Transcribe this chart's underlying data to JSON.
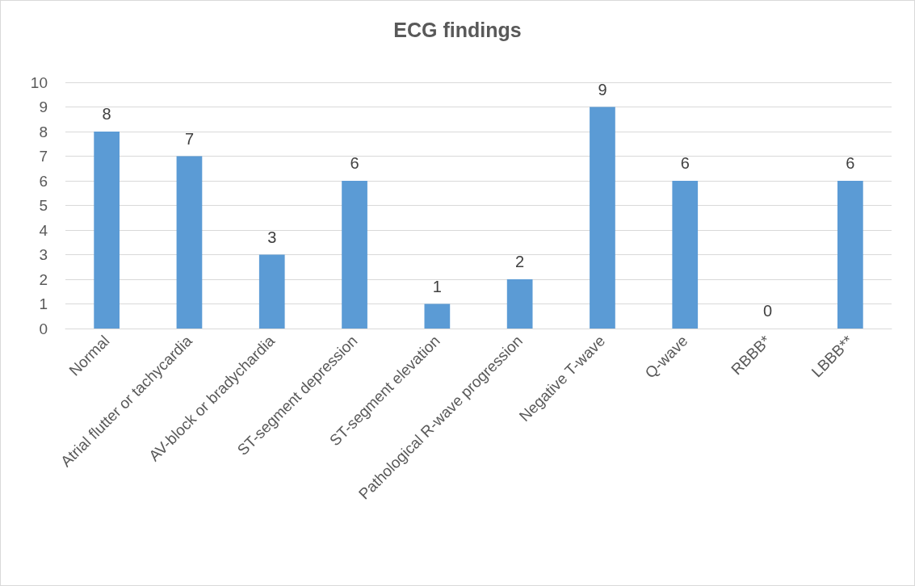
{
  "chart_data": {
    "type": "bar",
    "title": "ECG findings",
    "categories": [
      "Normal",
      "Atrial flutter or tachycardia",
      "AV-block or bradychardia",
      "ST-segment depression",
      "ST-segment elevation",
      "Pathological R-wave progression",
      "Negative T-wave",
      "Q-wave",
      "RBBB*",
      "LBBB**"
    ],
    "values": [
      8,
      7,
      3,
      6,
      1,
      2,
      9,
      6,
      0,
      6
    ],
    "color": "#5b9bd5",
    "ylim": [
      0,
      10
    ],
    "yticks": [
      0,
      1,
      2,
      3,
      4,
      5,
      6,
      7,
      8,
      9,
      10
    ],
    "grid": "y",
    "data_labels": true
  }
}
